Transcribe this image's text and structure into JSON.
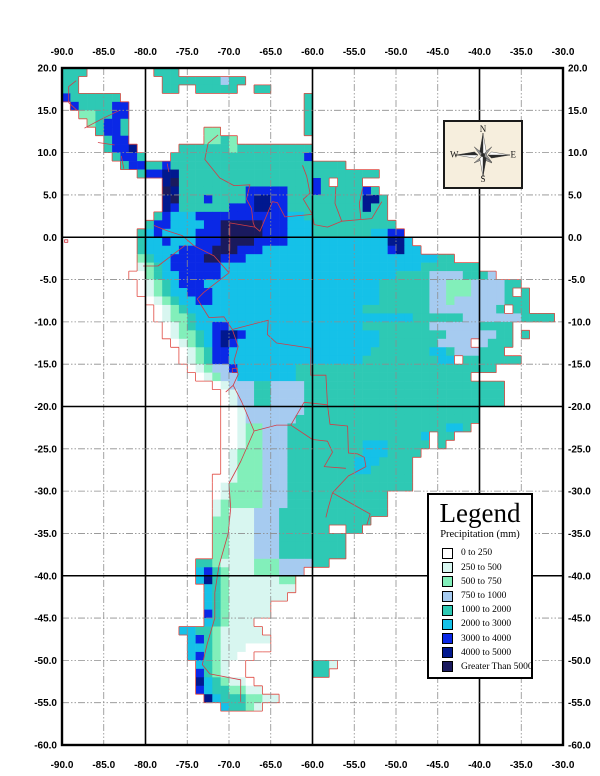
{
  "axes": {
    "lon_ticks": [
      -90,
      -85,
      -80,
      -75,
      -70,
      -65,
      -60,
      -55,
      -50,
      -45,
      -40,
      -35,
      -30
    ],
    "lat_ticks": [
      20,
      15,
      10,
      5,
      0,
      -5,
      -10,
      -15,
      -20,
      -25,
      -30,
      -35,
      -40,
      -45,
      -50,
      -55,
      -60
    ],
    "solid_lon": [
      -80,
      -60,
      -40
    ],
    "solid_lat": [
      0,
      -20,
      -40
    ]
  },
  "compass": {
    "north": "N",
    "east": "E",
    "south": "S",
    "west": "W"
  },
  "legend": {
    "title": "Legend",
    "subtitle": "Precipitation (mm)",
    "items": [
      {
        "label": "0 to 250",
        "color": "#ffffff"
      },
      {
        "label": "250 to 500",
        "color": "#d8f6f0"
      },
      {
        "label": "500 to 750",
        "color": "#82efba"
      },
      {
        "label": "750 to 1000",
        "color": "#a6cbf0"
      },
      {
        "label": "1000 to 2000",
        "color": "#2ec9b4"
      },
      {
        "label": "2000 to 3000",
        "color": "#15c1e8"
      },
      {
        "label": "3000 to 4000",
        "color": "#0a28e6"
      },
      {
        "label": "4000 to 5000",
        "color": "#01188f"
      },
      {
        "label": "Greater Than 5000",
        "color": "#1a1a5e"
      }
    ]
  },
  "map": {
    "type": "raster-choropleth",
    "lon_min": -90,
    "lon_max": -30,
    "lat_min": -60,
    "lat_max": 20,
    "cell_deg": 1,
    "class_colors": {
      "0": "#ffffff",
      "1": "#d8f6f0",
      "2": "#82efba",
      "3": "#a6cbf0",
      "4": "#2ec9b4",
      "5": "#15c1e8",
      "6": "#0a28e6",
      "7": "#01188f",
      "8": "#1a1a5e"
    },
    "coast_color": "#e04a42",
    "border_color": "#d23c46",
    "grid": [
      "444........444..............................................",
      "44..........4444444344......................................",
      "44..........44..44444..44...................................",
      "6444444......................4..............................",
      ".6444466.....................4..............................",
      "..224466.....................4..............................",
      "...24664.....................4..............................",
      "....4664.........22..........4..............................",
      ".....466.........2242.......................................",
      ".....4667.....4444442444444444..............................",
      "......4664...44444444444444446..............................",
      ".......466446444444444444444444444..........................",
      ".........46677444444444444444444444444......................",
      "............78444444444444444464.444........................",
      "............87444444446666644464444464......................",
      "............784446444467766444444444774.....................",
      "............764444446667766444444444744.....................",
      "...........4655566666666666554444444444.....................",
      "..........466555566888886665554444444444....................",
      ".........45655556668888866655544444445566...................",
      ".........455655566688886666555555555555775..................",
      ".........4555566668886665555555555555556755.................",
      ".........24556666886665555555555555555555555544.............",
      ".........12456666665555555555555555555555554444444...........",
      "........00245566666555555555555555555555444433334443........",
      ".........0124566655555555555555555555544444433222333344.....",
      ".........012455666555555555555555555554444443322233334 4....",
      "..........0124556655555555555555555555444444332333333444....",
      "...........012455555555555555555555544444444333333334 44.....",
      "...........012245555555555555555555555555544444433333334444.",
      "............012455665555555555555555444444443333334444......",
      "............012245677655555555555555554444444433333344 4.....",
      ".............012456765555555555555555544444443333 3444......",
      "..............012466555555555555555554444444554333444.......",
      "..............012466555555555555555544444444455 4444444.....",
      "...............0123365555555444444444444444444444444........",
      "................012335555555444444444444444444444...........",
      "..................01333443333444444444444444444444444.......",
      "...................0133443333444444444444444444444444.......",
      "...................0133443333444444444444444444444444.......",
      "...................0013333333444444444444444444444..........",
      "...................0013333334444444444444444444444..........",
      "...................001223334444444444444444444554...........",
      "...................0012233344444444444444445 44..............",
      "...................0012233344444444455544444 4...............",
      "...................012223334444444445554444.................",
      "...................01222333444444445554444..................",
      "...................01222333444444445544444..................",
      "..................001222333444444444444444..................",
      "..................012222333444444444444444..................",
      "..................012222333444444444444.....................",
      "..................122222333444444444444.....................",
      "..................121113334444444444444.....................",
      "..................2211133344444444444.......................",
      "..................22111333444444..44........................",
      "..................2211133344444444..........................",
      "..................2211133344444444..........................",
      "..................2211133344444444..........................",
      "................4421111222333344............................",
      "................5642111222333...............................",
      "................574211111122................................",
      ".................54211111111................................",
      ".................5421111111.................................",
      ".................54211111...................................",
      ".................64211111...................................",
      ".................542111.....................................",
      "..............5544211111....................................",
      "...............5642111111...................................",
      "...............5542111000...................................",
      "...............56421100.....................................",
      "................542100........441...........................",
      "................642100........44............................",
      "................7542110.....................................",
      "................65442211....................................",
      ".................754442211..................................",
      "...................54421....................................",
      "............................................................",
      "............................................................",
      "............................................................",
      "............................................................"
    ],
    "borders": [
      [
        [
          -89.2,
          15.9
        ],
        [
          -89.2,
          17.8
        ],
        [
          -88.3,
          18.5
        ]
      ],
      [
        [
          -89.2,
          15.9
        ],
        [
          -88.2,
          15.0
        ]
      ],
      [
        [
          -87.3,
          12.9
        ],
        [
          -85.2,
          14.0
        ],
        [
          -83.1,
          15.0
        ]
      ],
      [
        [
          -85.7,
          11.2
        ],
        [
          -83.7,
          10.9
        ]
      ],
      [
        [
          -82.9,
          9.6
        ],
        [
          -82.6,
          8.1
        ]
      ],
      [
        [
          -77.4,
          8.7
        ],
        [
          -77.2,
          7.7
        ]
      ],
      [
        [
          -71.3,
          12.1
        ],
        [
          -72.5,
          11.1
        ],
        [
          -72.9,
          9.2
        ],
        [
          -71.1,
          7.0
        ],
        [
          -69.4,
          6.1
        ],
        [
          -67.5,
          6.2
        ],
        [
          -67.9,
          4.5
        ],
        [
          -67.3,
          3.4
        ],
        [
          -67.1,
          1.7
        ],
        [
          -66.9,
          1.2
        ]
      ],
      [
        [
          -79.0,
          1.4
        ],
        [
          -77.5,
          0.8
        ],
        [
          -75.6,
          0.2
        ]
      ],
      [
        [
          -75.6,
          0.2
        ],
        [
          -74.2,
          -1.0
        ],
        [
          -71.8,
          -2.2
        ],
        [
          -70.0,
          -4.2
        ]
      ],
      [
        [
          -69.9,
          1.7
        ],
        [
          -69.9,
          -1.2
        ],
        [
          -70.0,
          -4.2
        ]
      ],
      [
        [
          -80.3,
          -3.4
        ],
        [
          -78.5,
          -3.4
        ],
        [
          -75.2,
          -0.9
        ]
      ],
      [
        [
          -70.0,
          -4.2
        ],
        [
          -73.0,
          -6.5
        ],
        [
          -73.8,
          -7.3
        ],
        [
          -72.4,
          -9.5
        ],
        [
          -70.6,
          -9.4
        ],
        [
          -69.6,
          -10.9
        ]
      ],
      [
        [
          -69.6,
          -10.9
        ],
        [
          -68.9,
          -12.9
        ],
        [
          -69.4,
          -14.6
        ],
        [
          -68.9,
          -16.2
        ],
        [
          -69.5,
          -17.5
        ]
      ],
      [
        [
          -69.5,
          -17.5
        ],
        [
          -70.4,
          -18.3
        ]
      ],
      [
        [
          -69.6,
          -10.9
        ],
        [
          -65.3,
          -9.8
        ],
        [
          -65.4,
          -11.5
        ],
        [
          -64.3,
          -12.5
        ],
        [
          -60.2,
          -13.1
        ],
        [
          -60.2,
          -16.3
        ],
        [
          -58.4,
          -16.3
        ],
        [
          -58.2,
          -19.8
        ]
      ],
      [
        [
          -69.5,
          -17.5
        ],
        [
          -68.5,
          -19.4
        ],
        [
          -67.0,
          -22.9
        ]
      ],
      [
        [
          -67.0,
          -22.9
        ],
        [
          -64.3,
          -22.2
        ],
        [
          -62.6,
          -22.2
        ]
      ],
      [
        [
          -62.6,
          -22.2
        ],
        [
          -61.0,
          -19.5
        ],
        [
          -58.2,
          -19.8
        ]
      ],
      [
        [
          -67.0,
          -22.9
        ],
        [
          -68.6,
          -26.5
        ],
        [
          -70.0,
          -29.1
        ],
        [
          -69.8,
          -32.0
        ],
        [
          -70.1,
          -35.0
        ],
        [
          -71.2,
          -38.8
        ],
        [
          -71.7,
          -42.0
        ],
        [
          -71.7,
          -45.0
        ],
        [
          -72.6,
          -48.0
        ],
        [
          -73.2,
          -50.5
        ],
        [
          -72.3,
          -51.6
        ],
        [
          -68.6,
          -52.3
        ],
        [
          -68.6,
          -54.9
        ]
      ],
      [
        [
          -62.6,
          -22.2
        ],
        [
          -60.0,
          -23.9
        ],
        [
          -58.2,
          -24.1
        ],
        [
          -57.6,
          -25.4
        ],
        [
          -58.6,
          -27.1
        ],
        [
          -56.0,
          -27.3
        ]
      ],
      [
        [
          -58.2,
          -19.8
        ],
        [
          -57.9,
          -22.1
        ],
        [
          -55.8,
          -22.3
        ],
        [
          -55.7,
          -25.5
        ],
        [
          -54.6,
          -25.6
        ],
        [
          -53.8,
          -26.0
        ]
      ],
      [
        [
          -53.8,
          -26.0
        ],
        [
          -53.6,
          -27.1
        ],
        [
          -55.1,
          -27.9
        ],
        [
          -55.7,
          -28.2
        ],
        [
          -57.6,
          -30.2
        ]
      ],
      [
        [
          -57.6,
          -30.2
        ],
        [
          -56.0,
          -31.1
        ],
        [
          -53.1,
          -32.7
        ],
        [
          -53.5,
          -34.0
        ]
      ],
      [
        [
          -57.6,
          -30.2
        ],
        [
          -58.1,
          -31.9
        ],
        [
          -58.4,
          -33.1
        ]
      ],
      [
        [
          -61.2,
          8.5
        ],
        [
          -60.7,
          7.2
        ],
        [
          -60.3,
          5.2
        ],
        [
          -61.1,
          4.5
        ],
        [
          -60.0,
          2.7
        ],
        [
          -59.8,
          1.5
        ]
      ],
      [
        [
          -57.2,
          6.0
        ],
        [
          -57.3,
          4.0
        ],
        [
          -56.5,
          1.9
        ]
      ],
      [
        [
          -54.0,
          5.8
        ],
        [
          -54.4,
          4.0
        ],
        [
          -54.2,
          2.1
        ]
      ],
      [
        [
          -51.7,
          4.2
        ],
        [
          -52.9,
          2.2
        ],
        [
          -54.2,
          2.1
        ],
        [
          -56.5,
          1.9
        ],
        [
          -58.2,
          1.2
        ],
        [
          -59.8,
          1.5
        ]
      ],
      [
        [
          -60.0,
          2.7
        ],
        [
          -63.3,
          2.4
        ],
        [
          -64.2,
          4.1
        ],
        [
          -64.8,
          4.2
        ],
        [
          -66.3,
          0.7
        ],
        [
          -66.9,
          1.2
        ]
      ],
      [
        [
          -66.9,
          1.2
        ],
        [
          -69.9,
          1.7
        ]
      ],
      [
        [
          -89.7,
          -0.3
        ],
        [
          -89.3,
          -0.3
        ],
        [
          -89.3,
          -0.6
        ],
        [
          -89.7,
          -0.6
        ],
        [
          -89.7,
          -0.3
        ]
      ],
      [
        [
          -69.6,
          -15.5
        ],
        [
          -69.0,
          -15.5
        ],
        [
          -69.0,
          -16.0
        ],
        [
          -69.6,
          -16.0
        ],
        [
          -69.6,
          -15.5
        ]
      ]
    ]
  }
}
